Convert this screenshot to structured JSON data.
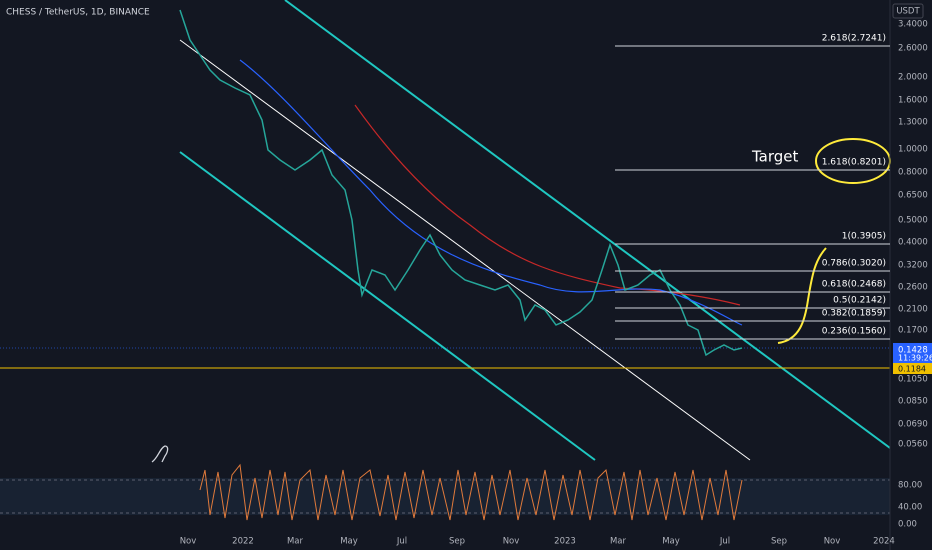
{
  "header": {
    "symbol": "CHESS / TetherUS, 1D, BINANCE",
    "currency": "USDT"
  },
  "price_axis": [
    "3.4000",
    "2.6000",
    "2.0000",
    "1.6000",
    "1.3000",
    "1.0000",
    "0.8000",
    "0.6500",
    "0.5000",
    "0.4000",
    "0.3200",
    "0.2600",
    "0.2100",
    "0.1700",
    "0.1050",
    "0.0850",
    "0.0690",
    "0.0560"
  ],
  "badges": {
    "last_price": "0.1428",
    "countdown": "11:39:26",
    "line_price": "0.1184"
  },
  "fib_levels": [
    "2.618(2.7241)",
    "1.618(0.8201)",
    "1(0.3905)",
    "0.786(0.3020)",
    "0.618(0.2468)",
    "0.5(0.2142)",
    "0.382(0.1859)",
    "0.236(0.1560)"
  ],
  "annotation": "Target",
  "rsi_axis": [
    "80.00",
    "40.00",
    "0.00"
  ],
  "time_axis": [
    "Nov",
    "2022",
    "Mar",
    "May",
    "Jul",
    "Sep",
    "Nov",
    "2023",
    "Mar",
    "May",
    "Jul",
    "Sep",
    "Nov",
    "2024"
  ]
}
